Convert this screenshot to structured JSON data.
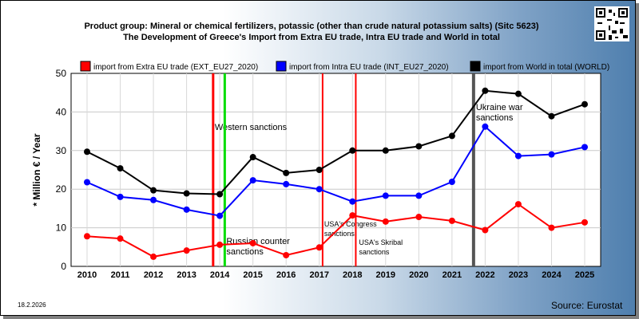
{
  "title_line1": "Product group: Mineral or chemical fertilizers, potassic (other than crude natural potassium salts) (Sitc 5623)",
  "title_line2": "The Development of Greece's Import from Extra EU trade, Intra EU trade and World in total",
  "date": "18.2.2026",
  "source": "Source: Eurostat",
  "chart_data": {
    "type": "line",
    "title": "The Development of Greece's Import from Extra EU trade, Intra EU trade and World in total",
    "ylabel": "* Million € / Year",
    "xlabel": "",
    "x": [
      2010,
      2011,
      2012,
      2013,
      2014,
      2015,
      2016,
      2017,
      2018,
      2019,
      2020,
      2021,
      2022,
      2023,
      2024,
      2025
    ],
    "xticks": [
      "2010",
      "2011",
      "2012",
      "2013",
      "2014",
      "2015",
      "2016",
      "2017",
      "2018",
      "2019",
      "2020",
      "2021",
      "2022",
      "2023",
      "2024",
      "2025"
    ],
    "ylim": [
      0,
      50
    ],
    "yticks": [
      "0",
      "10",
      "20",
      "30",
      "40",
      "50"
    ],
    "grid": true,
    "legend_position": "top",
    "series": [
      {
        "name": "import from Extra EU trade (EXT_EU27_2020)",
        "color": "#ff0000",
        "values": [
          7.8,
          7.2,
          2.5,
          4.1,
          5.6,
          6.0,
          2.9,
          4.9,
          13.2,
          11.6,
          12.8,
          11.8,
          9.4,
          16.1,
          10.0,
          11.4
        ]
      },
      {
        "name": "import from Intra EU trade (INT_EU27_2020)",
        "color": "#0000ff",
        "values": [
          21.8,
          18.0,
          17.2,
          14.7,
          13.1,
          22.3,
          21.3,
          20.0,
          16.8,
          18.3,
          18.3,
          21.9,
          36.2,
          28.6,
          29.0,
          30.9
        ]
      },
      {
        "name": "import from World in total (WORLD)",
        "color": "#000000",
        "values": [
          29.7,
          25.4,
          19.7,
          18.9,
          18.7,
          28.3,
          24.2,
          25.0,
          30.0,
          30.0,
          31.1,
          33.8,
          45.5,
          44.7,
          38.9,
          42.0
        ]
      }
    ],
    "annotations": [
      {
        "label": "Western sanctions",
        "x": 2013.8,
        "color": "#ff0000"
      },
      {
        "label": "",
        "x": 2014.15,
        "color": "#00dd00"
      },
      {
        "label": "Russian counter sanctions",
        "x": 2014.15,
        "color": "#00dd00"
      },
      {
        "label": "USA's Congress sanctions",
        "x": 2017.1,
        "color": "#ff0000"
      },
      {
        "label": "USA's Skribal sanctions",
        "x": 2018.1,
        "color": "#ff0000"
      },
      {
        "label": "Ukraine war sanctions",
        "x": 2021.65,
        "color": "#555555"
      }
    ]
  }
}
